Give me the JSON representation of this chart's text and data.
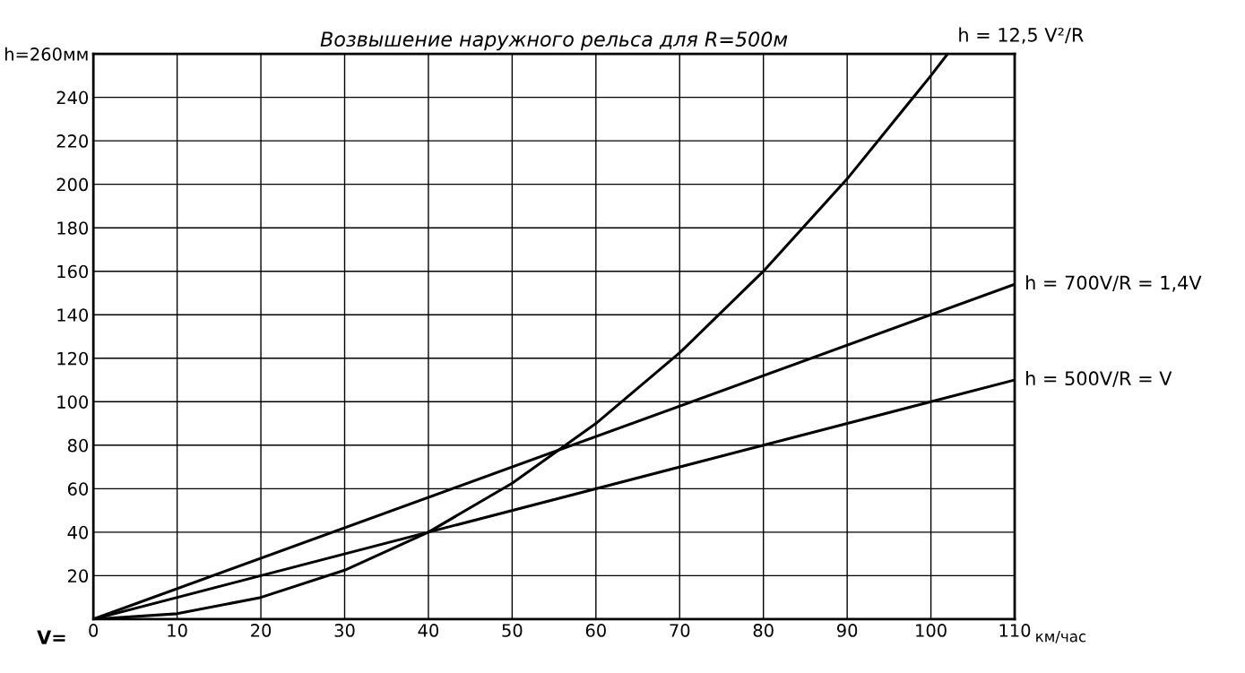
{
  "chart_data": {
    "type": "line",
    "title": "Возвышение наружного рельса для R=500м",
    "xlabel": "км/час",
    "annotations": [
      "V="
    ],
    "xlim": [
      0,
      110
    ],
    "xticks": [
      0,
      10,
      20,
      30,
      40,
      50,
      60,
      70,
      80,
      90,
      100,
      110
    ],
    "ylim": [
      0,
      260
    ],
    "yticks": [
      20,
      40,
      60,
      80,
      100,
      120,
      140,
      160,
      180,
      200,
      220,
      240,
      {
        "value": 260,
        "label": "h=260мм"
      }
    ],
    "grid": true,
    "marker": "none",
    "line_style": "solid",
    "legend": false,
    "series": [
      {
        "name": "h = 12,5 V²/R",
        "color": "#000000",
        "x": [
          0,
          10,
          20,
          30,
          40,
          50,
          60,
          70,
          80,
          90,
          100,
          102
        ],
        "values": [
          0,
          2.5,
          10,
          22.5,
          40,
          62.5,
          90,
          122.5,
          160,
          202.5,
          250,
          260
        ]
      },
      {
        "name": "h = 700V/R = 1,4V",
        "color": "#000000",
        "x": [
          0,
          110
        ],
        "values": [
          0,
          154
        ]
      },
      {
        "name": "h = 500V/R = V",
        "color": "#000000",
        "x": [
          0,
          110
        ],
        "values": [
          0,
          110
        ]
      }
    ]
  }
}
